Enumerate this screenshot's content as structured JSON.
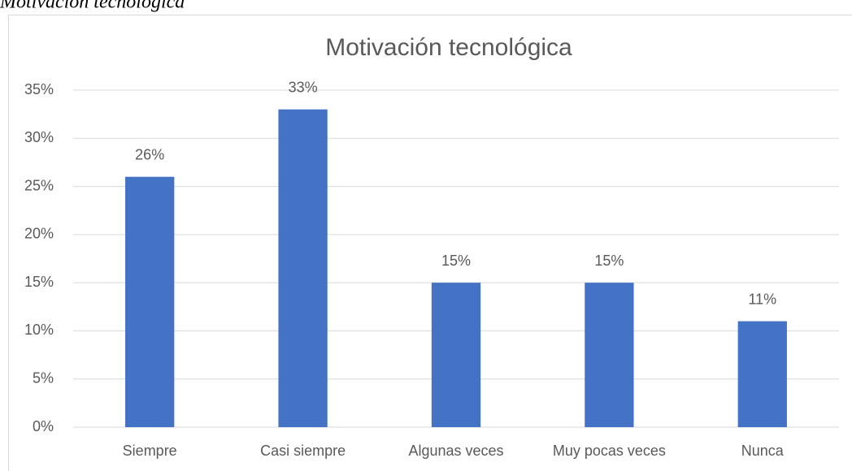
{
  "caption": "Motivación tecnológica",
  "chart_data": {
    "type": "bar",
    "title": "Motivación tecnológica",
    "categories": [
      "Siempre",
      "Casi siempre",
      "Algunas veces",
      "Muy pocas veces",
      "Nunca"
    ],
    "values": [
      26,
      33,
      15,
      15,
      11
    ],
    "value_labels": [
      "26%",
      "33%",
      "15%",
      "15%",
      "11%"
    ],
    "color": "#4472c4",
    "ylim": [
      0,
      35
    ],
    "yticks": [
      {
        "value": 0,
        "label": "0%"
      },
      {
        "value": 5,
        "label": "5%"
      },
      {
        "value": 10,
        "label": "10%"
      },
      {
        "value": 15,
        "label": "15%"
      },
      {
        "value": 20,
        "label": "20%"
      },
      {
        "value": 25,
        "label": "25%"
      },
      {
        "value": 30,
        "label": "30%"
      },
      {
        "value": 35,
        "label": "35%"
      }
    ],
    "grid": true
  }
}
